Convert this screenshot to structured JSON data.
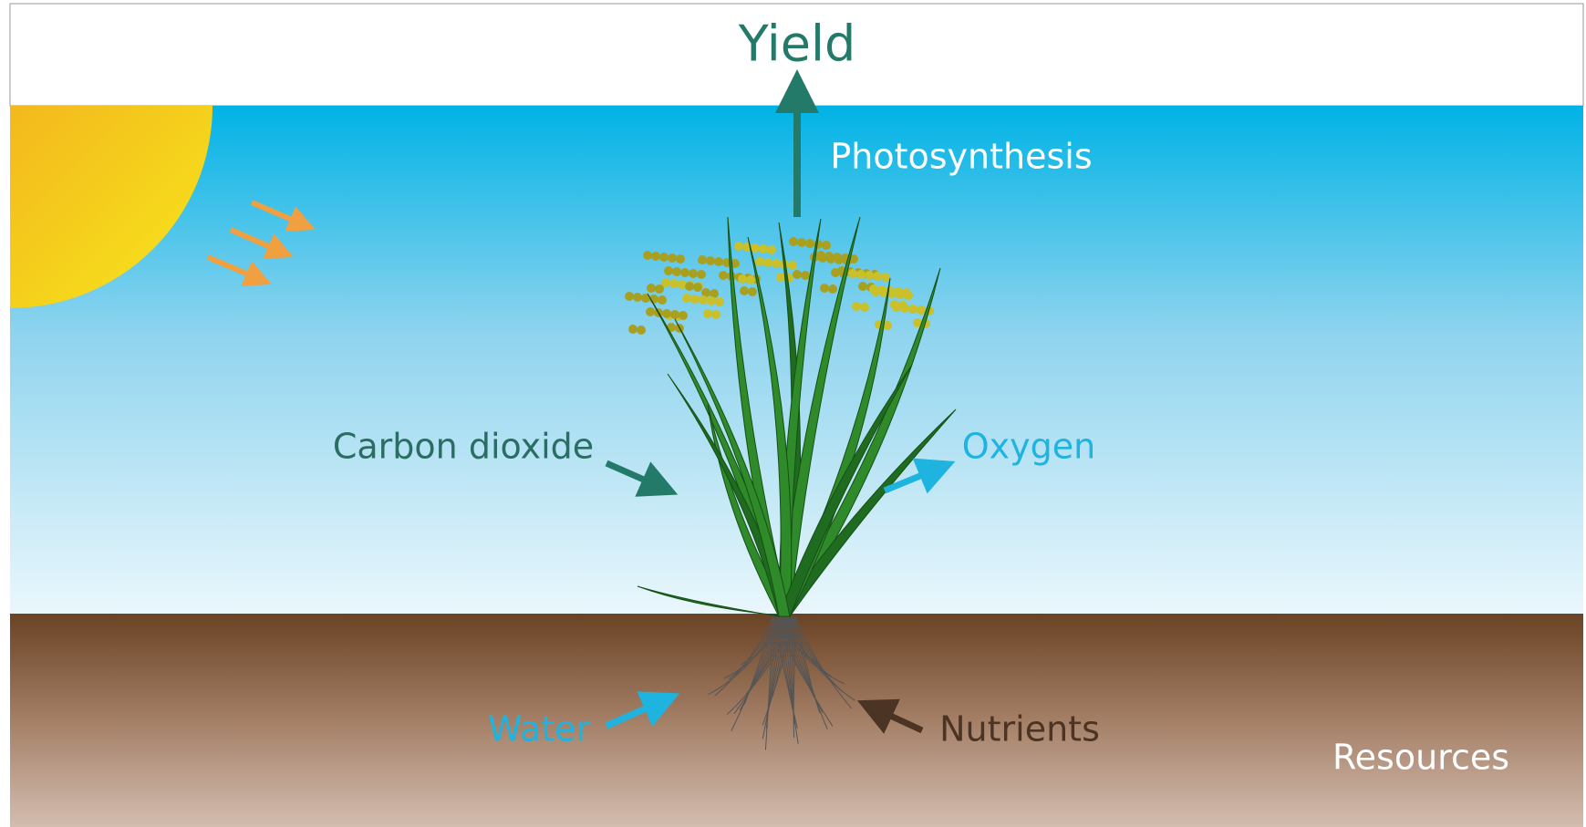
{
  "labels": {
    "yield": "Yield",
    "photosynthesis": "Photosynthesis",
    "carbon_dioxide": "Carbon dioxide",
    "oxygen": "Oxygen",
    "water": "Water",
    "nutrients": "Nutrients",
    "resources": "Resources"
  }
}
